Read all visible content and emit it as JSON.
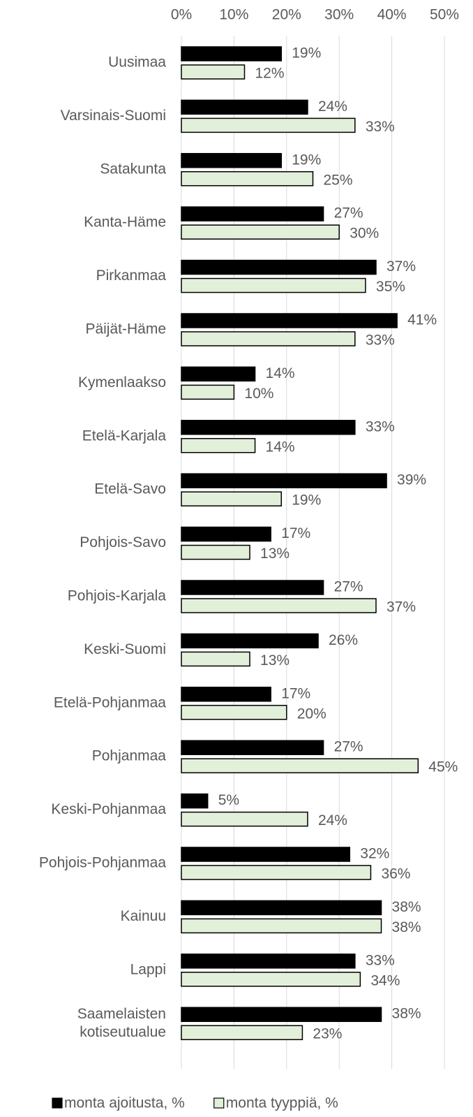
{
  "chart_data": {
    "type": "barh",
    "categories": [
      "Uusimaa",
      "Varsinais-Suomi",
      "Satakunta",
      "Kanta-Häme",
      "Pirkanmaa",
      "Päijät-Häme",
      "Kymenlaakso",
      "Etelä-Karjala",
      "Etelä-Savo",
      "Pohjois-Savo",
      "Pohjois-Karjala",
      "Keski-Suomi",
      "Etelä-Pohjanmaa",
      "Pohjanmaa",
      "Keski-Pohjanmaa",
      "Pohjois-Pohjanmaa",
      "Kainuu",
      "Lappi",
      "Saamelaisten kotiseutualue"
    ],
    "series": [
      {
        "name": "monta ajoitusta, %",
        "color": "#000000",
        "values": [
          19,
          24,
          19,
          27,
          37,
          41,
          14,
          33,
          39,
          17,
          27,
          26,
          17,
          27,
          5,
          32,
          38,
          33,
          38
        ],
        "value_labels": [
          "19%",
          "24%",
          "19%",
          "27%",
          "37%",
          "41%",
          "14%",
          "33%",
          "39%",
          "17%",
          "27%",
          "26%",
          "17%",
          "27%",
          "5%",
          "32%",
          "38%",
          "33%",
          "38%"
        ]
      },
      {
        "name": "monta tyyppiä, %",
        "color": "#e2f0d9",
        "values": [
          12,
          33,
          25,
          30,
          35,
          33,
          10,
          14,
          19,
          13,
          37,
          13,
          20,
          45,
          24,
          36,
          38,
          34,
          23
        ],
        "value_labels": [
          "12%",
          "33%",
          "25%",
          "30%",
          "35%",
          "33%",
          "10%",
          "14%",
          "19%",
          "13%",
          "37%",
          "13%",
          "20%",
          "45%",
          "24%",
          "36%",
          "38%",
          "34%",
          "23%"
        ]
      }
    ],
    "xlim": [
      0,
      50
    ],
    "xticks": [
      {
        "value": 0,
        "label": "0%"
      },
      {
        "value": 10,
        "label": "10%"
      },
      {
        "value": 20,
        "label": "20%"
      },
      {
        "value": 30,
        "label": "30%"
      },
      {
        "value": 40,
        "label": "40%"
      },
      {
        "value": 50,
        "label": "50%"
      }
    ],
    "grid": true,
    "legend": "bottom"
  }
}
